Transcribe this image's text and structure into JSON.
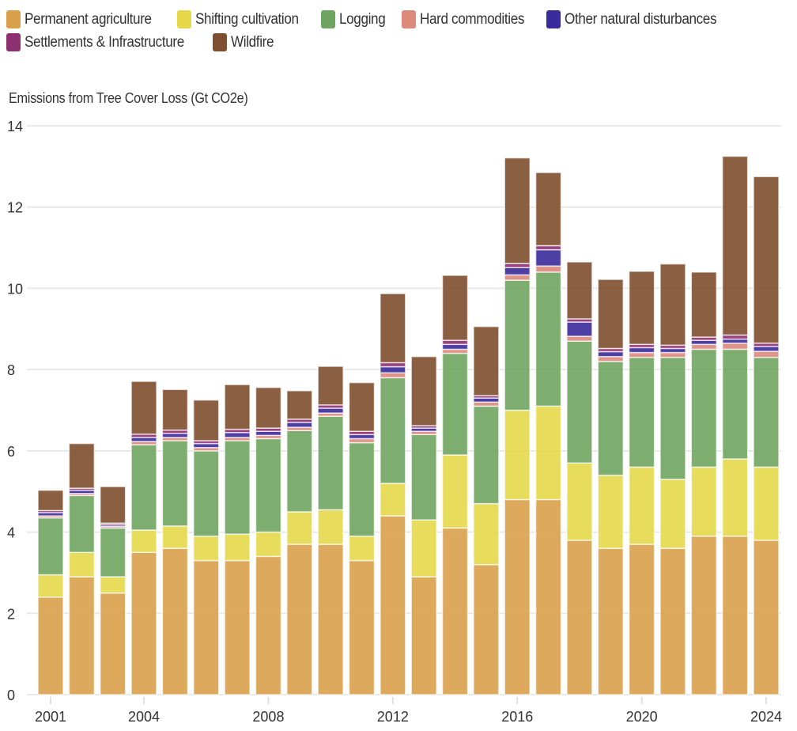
{
  "chart_data": {
    "type": "bar",
    "stacked": true,
    "title": "",
    "ylabel": "Emissions from Tree Cover Loss (Gt CO2e)",
    "xlabel": "",
    "ylim": [
      0,
      14
    ],
    "yticks": [
      0,
      2,
      4,
      6,
      8,
      10,
      12,
      14
    ],
    "xtick_labels": [
      "2001",
      "2004",
      "2008",
      "2012",
      "2016",
      "2020",
      "2024"
    ],
    "grid": true,
    "legend_position": "top-left",
    "categories": [
      "2001",
      "2002",
      "2003",
      "2004",
      "2005",
      "2006",
      "2007",
      "2008",
      "2009",
      "2010",
      "2011",
      "2012",
      "2013",
      "2014",
      "2015",
      "2016",
      "2017",
      "2018",
      "2019",
      "2020",
      "2021",
      "2022",
      "2023",
      "2024"
    ],
    "series": [
      {
        "name": "Permanent agriculture",
        "color": "#D9A04A",
        "values": [
          2.4,
          2.9,
          2.5,
          3.5,
          3.6,
          3.3,
          3.3,
          3.4,
          3.7,
          3.7,
          3.3,
          4.4,
          2.9,
          4.1,
          3.2,
          4.8,
          4.8,
          3.8,
          3.6,
          3.7,
          3.6,
          3.9,
          3.9,
          3.8
        ]
      },
      {
        "name": "Shifting cultivation",
        "color": "#E6D84A",
        "values": [
          0.55,
          0.6,
          0.4,
          0.55,
          0.55,
          0.6,
          0.65,
          0.6,
          0.8,
          0.85,
          0.6,
          0.8,
          1.4,
          1.8,
          1.5,
          2.2,
          2.3,
          1.9,
          1.8,
          1.9,
          1.7,
          1.7,
          1.9,
          1.8
        ]
      },
      {
        "name": "Logging",
        "color": "#6FA560",
        "values": [
          1.4,
          1.4,
          1.2,
          2.1,
          2.1,
          2.1,
          2.3,
          2.3,
          2.0,
          2.3,
          2.3,
          2.6,
          2.1,
          2.5,
          2.4,
          3.2,
          3.3,
          3.0,
          2.8,
          2.7,
          3.0,
          2.9,
          2.7,
          2.7
        ]
      },
      {
        "name": "Hard commodities",
        "color": "#DB8A7C",
        "values": [
          0.05,
          0.05,
          0.04,
          0.08,
          0.08,
          0.08,
          0.08,
          0.08,
          0.08,
          0.08,
          0.1,
          0.12,
          0.08,
          0.1,
          0.1,
          0.13,
          0.15,
          0.12,
          0.12,
          0.12,
          0.12,
          0.12,
          0.15,
          0.15
        ]
      },
      {
        "name": "Other natural disturbances",
        "color": "#3A2A9A",
        "values": [
          0.08,
          0.08,
          0.04,
          0.1,
          0.1,
          0.1,
          0.12,
          0.1,
          0.12,
          0.12,
          0.1,
          0.15,
          0.08,
          0.12,
          0.1,
          0.18,
          0.4,
          0.35,
          0.12,
          0.12,
          0.1,
          0.1,
          0.1,
          0.12
        ]
      },
      {
        "name": "Settlements & Infrastructure",
        "color": "#8E2F72",
        "values": [
          0.05,
          0.05,
          0.04,
          0.08,
          0.08,
          0.07,
          0.08,
          0.08,
          0.08,
          0.08,
          0.08,
          0.1,
          0.06,
          0.1,
          0.06,
          0.1,
          0.1,
          0.08,
          0.08,
          0.08,
          0.08,
          0.08,
          0.1,
          0.08
        ]
      },
      {
        "name": "Wildfire",
        "color": "#7E4F2E",
        "values": [
          0.5,
          1.1,
          0.9,
          1.3,
          1.0,
          1.0,
          1.1,
          1.0,
          0.7,
          0.95,
          1.2,
          1.7,
          1.7,
          1.6,
          1.7,
          2.6,
          1.8,
          1.4,
          1.7,
          1.8,
          2.0,
          1.6,
          4.4,
          4.1
        ]
      }
    ]
  },
  "legend": {
    "rows": [
      [
        {
          "label": "Permanent agriculture",
          "color": "#D9A04A"
        },
        {
          "label": "Shifting cultivation",
          "color": "#E6D84A"
        },
        {
          "label": "Logging",
          "color": "#6FA560"
        },
        {
          "label": "Hard commodities",
          "color": "#DB8A7C"
        },
        {
          "label": "Other natural disturbances",
          "color": "#3A2A9A"
        }
      ],
      [
        {
          "label": "Settlements & Infrastructure",
          "color": "#8E2F72"
        },
        {
          "label": "Wildfire",
          "color": "#7E4F2E"
        }
      ]
    ]
  },
  "axis": {
    "y_title": "Emissions from Tree Cover Loss (Gt CO2e)"
  }
}
